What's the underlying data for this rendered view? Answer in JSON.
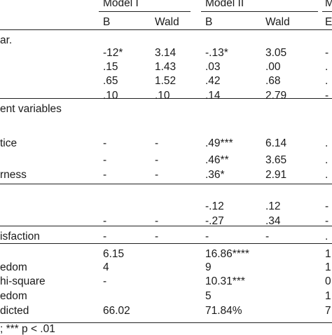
{
  "headers": {
    "model1": "Model I",
    "model2": "Model II",
    "model3_partial": "M",
    "sub": {
      "b1": "B",
      "wald1": "Wald",
      "b2": "B",
      "wald2": "Wald",
      "b3": "E"
    }
  },
  "rows": [
    {
      "label": "ar.",
      "b1": "",
      "w1": "",
      "b2": "",
      "w2": "",
      "b3": ""
    },
    {
      "label": "",
      "b1": "-12*",
      "w1": "3.14",
      "b2": "-.13*",
      "w2": "3.05",
      "b3": "-"
    },
    {
      "label": "",
      "b1": ".15",
      "w1": "1.43",
      "b2": ".03",
      "w2": ".00",
      "b3": "."
    },
    {
      "label": "",
      "b1": ".65",
      "w1": "1.52",
      "b2": ".42",
      "w2": ".68",
      "b3": "."
    },
    {
      "label": "",
      "b1": ".10",
      "w1": ".10",
      "b2": ".14",
      "w2": "2.79",
      "b3": "-"
    },
    {
      "label": "ent variables",
      "b1": "",
      "w1": "",
      "b2": "",
      "w2": "",
      "b3": ""
    },
    {
      "label": "tice",
      "b1": "-",
      "w1": "-",
      "b2": ".49***",
      "w2": "6.14",
      "b3": "."
    },
    {
      "label": "",
      "b1": "-",
      "w1": "-",
      "b2": ".46**",
      "w2": "3.65",
      "b3": "."
    },
    {
      "label": "rness",
      "b1": "-",
      "w1": "-",
      "b2": ".36*",
      "w2": "2.91",
      "b3": "."
    },
    {
      "label": "",
      "b1": "",
      "w1": "",
      "b2": "-.12",
      "w2": ".12",
      "b3": "-"
    },
    {
      "label": "",
      "b1": "-",
      "w1": "-",
      "b2": "-.27",
      "w2": ".34",
      "b3": "-"
    },
    {
      "label": "isfaction",
      "b1": "-",
      "w1": "-",
      "b2": "-",
      "w2": "-",
      "b3": "."
    },
    {
      "label": "",
      "b1": "6.15",
      "w1": "",
      "b2": "16.86****",
      "w2": "",
      "b3": "1"
    },
    {
      "label": "edom",
      "b1": "4",
      "w1": "",
      "b2": "9",
      "w2": "",
      "b3": "1"
    },
    {
      "label": "hi-square",
      "b1": "-",
      "w1": "",
      "b2": "10.31***",
      "w2": "",
      "b3": "0"
    },
    {
      "label": "edom",
      "b1": "",
      "w1": "",
      "b2": "5",
      "w2": "",
      "b3": "1"
    },
    {
      "label": "dicted",
      "b1": "66.02",
      "w1": "",
      "b2": "71.84%",
      "w2": "",
      "b3": "7"
    }
  ],
  "footnote": "; *** p < .01"
}
